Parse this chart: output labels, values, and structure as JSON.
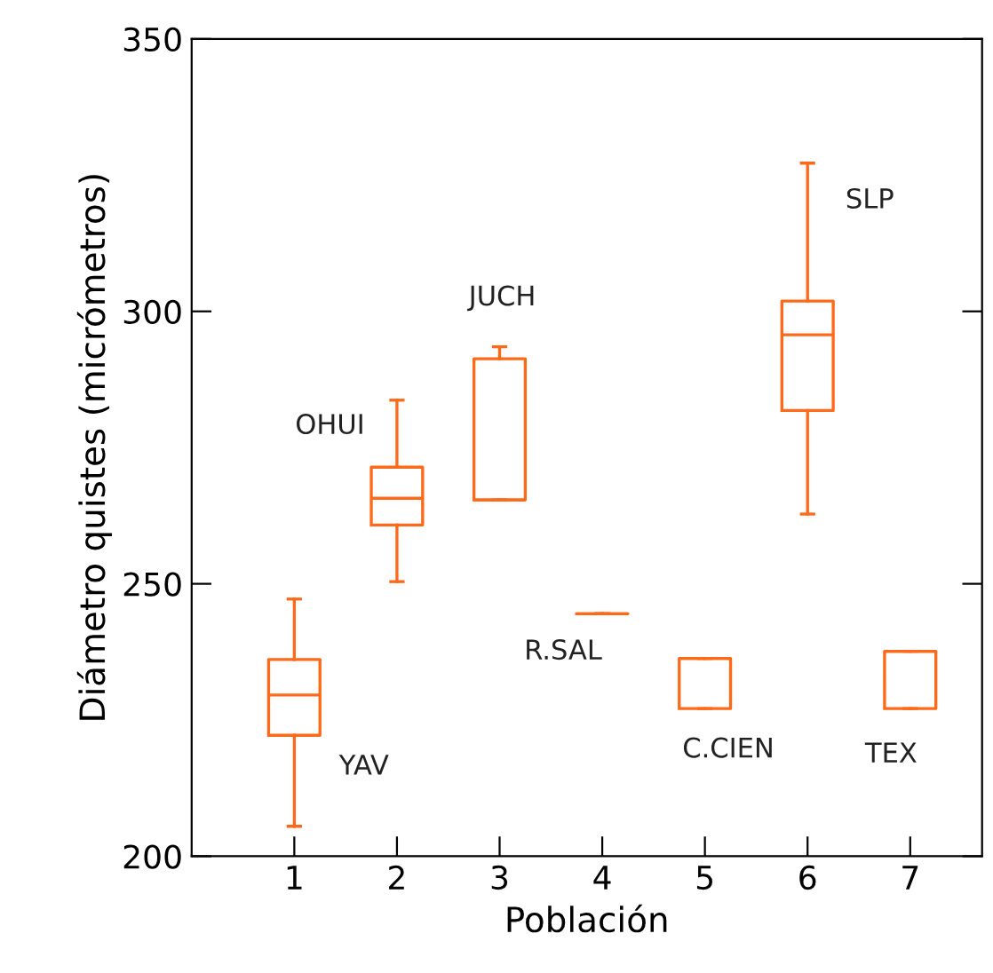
{
  "chart_data": {
    "type": "box",
    "xlabel": "Población",
    "ylabel": "Diámetro quistes (micrómetros)",
    "categories": [
      "1",
      "2",
      "3",
      "4",
      "5",
      "6",
      "7"
    ],
    "ylim": [
      200,
      350
    ],
    "yticks": [
      200,
      250,
      300,
      350
    ],
    "grid": false,
    "series": [
      {
        "color": "#ff6a1a",
        "boxes": [
          {
            "low": 205.5,
            "q1": 222.2,
            "median": 229.6,
            "q3": 236.1,
            "high": 247.2
          },
          {
            "low": 250.4,
            "q1": 260.8,
            "median": 265.7,
            "q3": 271.4,
            "high": 283.7
          },
          {
            "low": 265.4,
            "q1": 265.4,
            "median": 265.4,
            "q3": 291.3,
            "high": 293.5
          },
          {
            "low": 244.5,
            "q1": 244.5,
            "median": 244.5,
            "q3": 244.5,
            "high": 244.5
          },
          {
            "low": 227.1,
            "q1": 227.1,
            "median": 236.3,
            "q3": 236.3,
            "high": 236.3
          },
          {
            "low": 262.8,
            "q1": 281.8,
            "median": 295.7,
            "q3": 301.9,
            "high": 327.2
          },
          {
            "low": 227.1,
            "q1": 227.1,
            "median": 237.6,
            "q3": 237.6,
            "high": 237.6
          }
        ]
      }
    ],
    "annotations": [
      "YAV",
      "OHUI",
      "JUCH",
      "R.SAL",
      "C.CIEN",
      "SLP",
      "TEX"
    ]
  }
}
